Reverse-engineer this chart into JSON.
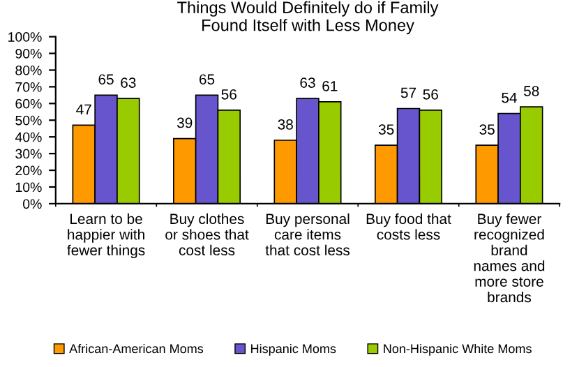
{
  "chart_data": {
    "type": "bar",
    "title": "Things Would Definitely do if Family\nFound Itself with Less Money",
    "categories": [
      "Learn to be\nhappier with\nfewer things",
      "Buy clothes\nor shoes that\ncost less",
      "Buy personal\ncare items\nthat cost less",
      "Buy food that\ncosts less",
      "Buy fewer\nrecognized\nbrand\nnames and\nmore store\nbrands"
    ],
    "series": [
      {
        "name": "African-American Moms",
        "color": "#ff9900",
        "values": [
          47,
          39,
          38,
          35,
          35
        ]
      },
      {
        "name": "Hispanic Moms",
        "color": "#6655cc",
        "values": [
          65,
          65,
          63,
          57,
          54
        ]
      },
      {
        "name": "Non-Hispanic White Moms",
        "color": "#99cc00",
        "values": [
          63,
          56,
          61,
          56,
          58
        ]
      }
    ],
    "ylim": [
      0,
      100
    ],
    "yticks": [
      {
        "value": 0,
        "label": "0%"
      },
      {
        "value": 10,
        "label": "10%"
      },
      {
        "value": 20,
        "label": "20%"
      },
      {
        "value": 30,
        "label": "30%"
      },
      {
        "value": 40,
        "label": "40%"
      },
      {
        "value": 50,
        "label": "50%"
      },
      {
        "value": 60,
        "label": "60%"
      },
      {
        "value": 70,
        "label": "70%"
      },
      {
        "value": 80,
        "label": "80%"
      },
      {
        "value": 90,
        "label": "90%"
      },
      {
        "value": 100,
        "label": "100%"
      }
    ],
    "data_labels": true,
    "grid": false,
    "legend": "bottom"
  }
}
